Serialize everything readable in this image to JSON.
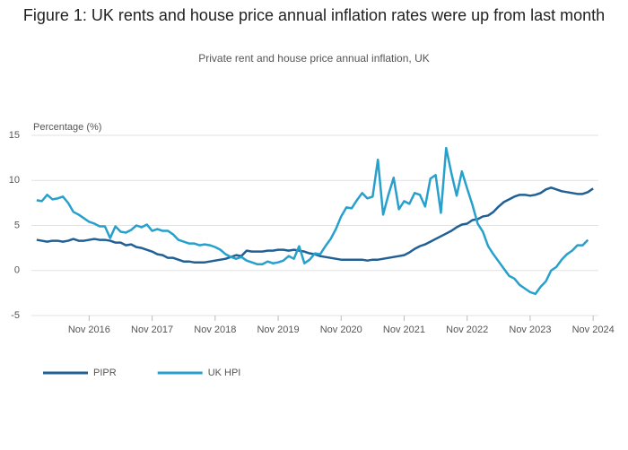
{
  "chart_data": {
    "type": "line",
    "title": "Figure 1: UK rents and house price annual inflation rates were up from last month",
    "subtitle": "Private rent and house price annual inflation, UK",
    "y_label": "Percentage (%)",
    "x": [
      "2016-01",
      "2016-02",
      "2016-03",
      "2016-04",
      "2016-05",
      "2016-06",
      "2016-07",
      "2016-08",
      "2016-09",
      "2016-10",
      "2016-11",
      "2016-12",
      "2017-01",
      "2017-02",
      "2017-03",
      "2017-04",
      "2017-05",
      "2017-06",
      "2017-07",
      "2017-08",
      "2017-09",
      "2017-10",
      "2017-11",
      "2017-12",
      "2018-01",
      "2018-02",
      "2018-03",
      "2018-04",
      "2018-05",
      "2018-06",
      "2018-07",
      "2018-08",
      "2018-09",
      "2018-10",
      "2018-11",
      "2018-12",
      "2019-01",
      "2019-02",
      "2019-03",
      "2019-04",
      "2019-05",
      "2019-06",
      "2019-07",
      "2019-08",
      "2019-09",
      "2019-10",
      "2019-11",
      "2019-12",
      "2020-01",
      "2020-02",
      "2020-03",
      "2020-04",
      "2020-05",
      "2020-06",
      "2020-07",
      "2020-08",
      "2020-09",
      "2020-10",
      "2020-11",
      "2020-12",
      "2021-01",
      "2021-02",
      "2021-03",
      "2021-04",
      "2021-05",
      "2021-06",
      "2021-07",
      "2021-08",
      "2021-09",
      "2021-10",
      "2021-11",
      "2021-12",
      "2022-01",
      "2022-02",
      "2022-03",
      "2022-04",
      "2022-05",
      "2022-06",
      "2022-07",
      "2022-08",
      "2022-09",
      "2022-10",
      "2022-11",
      "2022-12",
      "2023-01",
      "2023-02",
      "2023-03",
      "2023-04",
      "2023-05",
      "2023-06",
      "2023-07",
      "2023-08",
      "2023-09",
      "2023-10",
      "2023-11",
      "2023-12",
      "2024-01",
      "2024-02",
      "2024-03",
      "2024-04",
      "2024-05",
      "2024-06",
      "2024-07",
      "2024-08",
      "2024-09",
      "2024-10",
      "2024-11"
    ],
    "series": [
      {
        "name": "PIPR",
        "color": "#206095",
        "values": [
          3.4,
          3.3,
          3.2,
          3.3,
          3.3,
          3.2,
          3.3,
          3.5,
          3.3,
          3.3,
          3.4,
          3.5,
          3.4,
          3.4,
          3.3,
          3.1,
          3.1,
          2.8,
          2.9,
          2.6,
          2.5,
          2.3,
          2.1,
          1.8,
          1.7,
          1.4,
          1.4,
          1.2,
          1.0,
          1.0,
          0.9,
          0.9,
          0.9,
          1.0,
          1.1,
          1.2,
          1.3,
          1.5,
          1.7,
          1.6,
          2.2,
          2.1,
          2.1,
          2.1,
          2.2,
          2.2,
          2.3,
          2.3,
          2.2,
          2.3,
          2.2,
          2.1,
          1.9,
          1.8,
          1.6,
          1.5,
          1.4,
          1.3,
          1.2,
          1.2,
          1.2,
          1.2,
          1.2,
          1.1,
          1.2,
          1.2,
          1.3,
          1.4,
          1.5,
          1.6,
          1.7,
          2.0,
          2.4,
          2.7,
          2.9,
          3.2,
          3.5,
          3.8,
          4.1,
          4.4,
          4.8,
          5.1,
          5.2,
          5.6,
          5.7,
          6.0,
          6.1,
          6.5,
          7.1,
          7.6,
          7.9,
          8.2,
          8.4,
          8.4,
          8.3,
          8.4,
          8.6,
          9.0,
          9.2,
          9.0,
          8.8,
          8.7,
          8.6,
          8.5,
          8.5,
          8.7,
          9.1
        ]
      },
      {
        "name": "UK HPI",
        "color": "#27a0cc",
        "values": [
          7.8,
          7.7,
          8.4,
          7.9,
          8.0,
          8.2,
          7.5,
          6.5,
          6.2,
          5.8,
          5.4,
          5.2,
          4.9,
          4.9,
          3.6,
          4.9,
          4.3,
          4.2,
          4.5,
          5.0,
          4.8,
          5.1,
          4.4,
          4.6,
          4.4,
          4.4,
          4.0,
          3.4,
          3.2,
          3.0,
          3.0,
          2.8,
          2.9,
          2.8,
          2.6,
          2.3,
          1.8,
          1.5,
          1.3,
          1.5,
          1.1,
          0.9,
          0.7,
          0.7,
          1.0,
          0.8,
          0.9,
          1.1,
          1.6,
          1.3,
          2.7,
          0.8,
          1.2,
          1.9,
          1.8,
          2.7,
          3.5,
          4.6,
          6.0,
          7.0,
          6.9,
          7.8,
          8.6,
          8.0,
          8.2,
          12.3,
          6.2,
          8.4,
          10.3,
          6.8,
          7.7,
          7.4,
          8.6,
          8.4,
          7.1,
          10.2,
          10.6,
          6.4,
          13.6,
          10.8,
          8.3,
          11.0,
          9.1,
          7.3,
          5.2,
          4.3,
          2.7,
          1.8,
          1.0,
          0.2,
          -0.6,
          -0.9,
          -1.6,
          -2.0,
          -2.4,
          -2.6,
          -1.8,
          -1.2,
          0.0,
          0.4,
          1.2,
          1.8,
          2.2,
          2.8,
          2.8,
          3.4,
          null
        ]
      }
    ],
    "xlim": [
      "2015-12",
      "2024-12"
    ],
    "xticks": [
      {
        "value": "2016-11",
        "label": "Nov 2016"
      },
      {
        "value": "2017-11",
        "label": "Nov 2017"
      },
      {
        "value": "2018-11",
        "label": "Nov 2018"
      },
      {
        "value": "2019-11",
        "label": "Nov 2019"
      },
      {
        "value": "2020-11",
        "label": "Nov 2020"
      },
      {
        "value": "2021-11",
        "label": "Nov 2021"
      },
      {
        "value": "2022-11",
        "label": "Nov 2022"
      },
      {
        "value": "2023-11",
        "label": "Nov 2023"
      },
      {
        "value": "2024-11",
        "label": "Nov 2024"
      }
    ],
    "ylim": [
      -5,
      15
    ],
    "yticks": [
      -5,
      0,
      5,
      10,
      15
    ],
    "grid": true,
    "legend": "bottom-left"
  }
}
